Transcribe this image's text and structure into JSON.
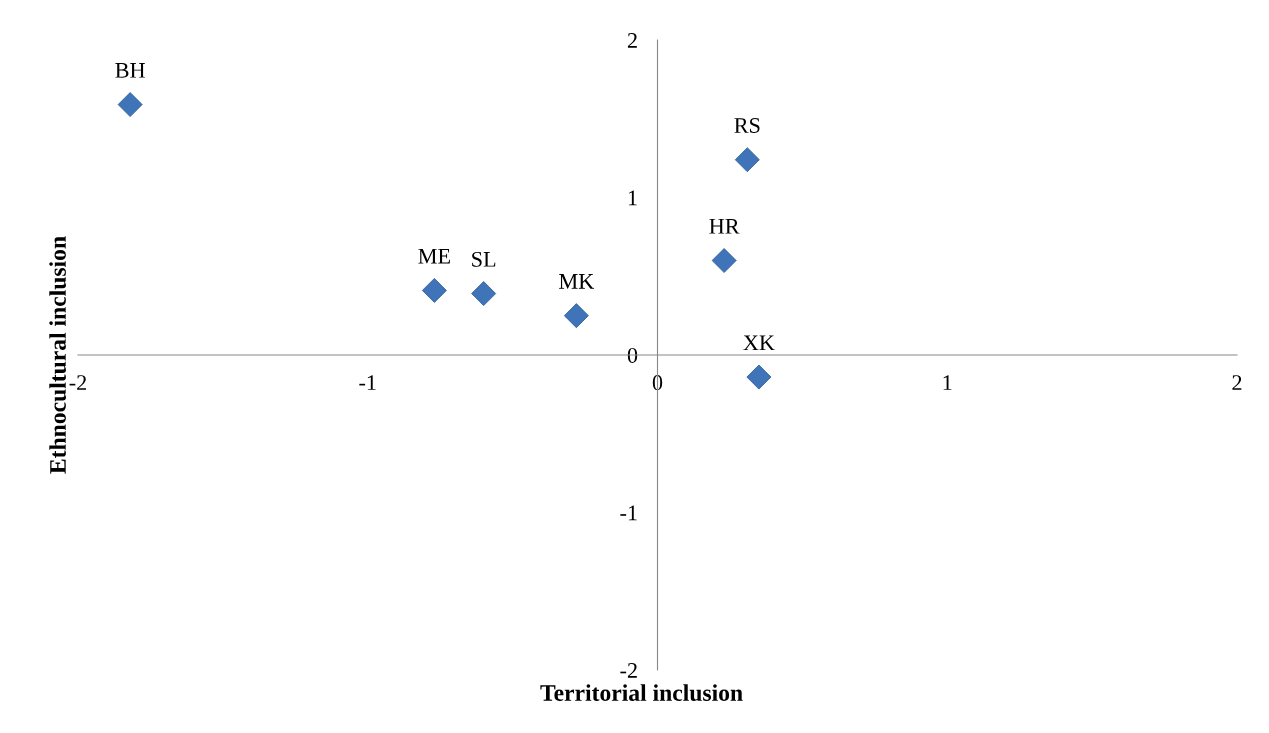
{
  "chart_data": {
    "type": "scatter",
    "xlabel": "Territorial inclusion",
    "ylabel": "Ethnocultural inclusion",
    "x": [
      -1.82,
      -0.77,
      -0.6,
      -0.28,
      0.23,
      0.31,
      0.35
    ],
    "series": [
      {
        "color": "#3f74b8",
        "values": [
          1.59,
          0.41,
          0.39,
          0.25,
          0.6,
          1.24,
          -0.14
        ]
      }
    ],
    "xlim": [
      -2,
      2
    ],
    "ylim": [
      -2,
      2
    ],
    "xticks": [
      -2,
      -1,
      0,
      1,
      2
    ],
    "yticks": [
      -2,
      -1,
      0,
      1,
      2
    ],
    "marker": "diamond",
    "grid": false,
    "legend": false,
    "annotations": [
      {
        "text": "BH",
        "x": -1.82,
        "y": 1.59
      },
      {
        "text": "ME",
        "x": -0.77,
        "y": 0.41
      },
      {
        "text": "SL",
        "x": -0.6,
        "y": 0.39
      },
      {
        "text": "MK",
        "x": -0.28,
        "y": 0.25
      },
      {
        "text": "HR",
        "x": 0.23,
        "y": 0.6
      },
      {
        "text": "RS",
        "x": 0.31,
        "y": 1.24
      },
      {
        "text": "XK",
        "x": 0.35,
        "y": -0.14
      }
    ]
  }
}
